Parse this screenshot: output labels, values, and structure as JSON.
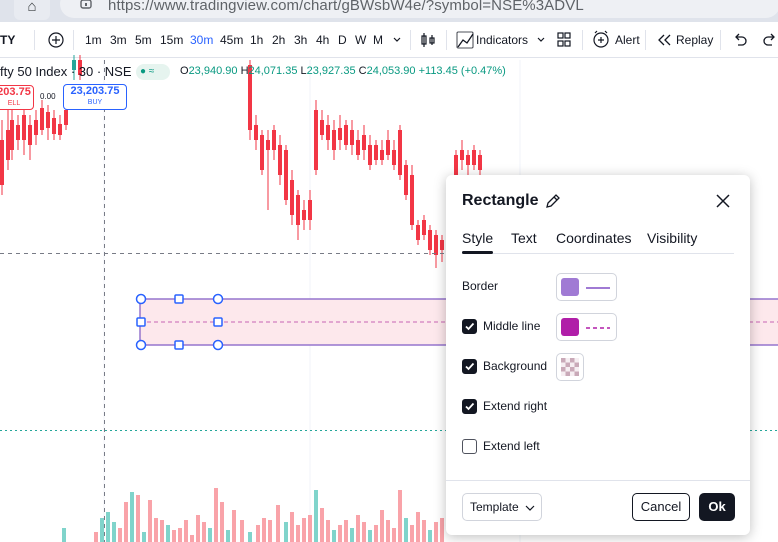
{
  "browser": {
    "url_domain": "https://www.tradingview.com",
    "url_path": "/chart/gBWsbW4e/?symbol=NSE%3ADVL"
  },
  "toolbar": {
    "symbol_partial": "TY",
    "timeframes": [
      "1m",
      "3m",
      "5m",
      "15m",
      "30m",
      "45m",
      "1h",
      "2h",
      "3h",
      "4h",
      "D",
      "W",
      "M"
    ],
    "active_timeframe": "30m",
    "indicators_label": "Indicators",
    "alert_label": "Alert",
    "replay_label": "Replay"
  },
  "legend": {
    "symbol": "fty 50 Index · 30 · NSE",
    "pill": "≈",
    "open_label": "O",
    "open": "23,940.90",
    "high_label": "H",
    "high": "24,071.35",
    "low_label": "L",
    "low": "23,927.35",
    "close_label": "C",
    "close": "24,053.90",
    "change": "+113.45 (+0.47%)"
  },
  "trade": {
    "sell_price": "203.75",
    "sell_label": "ELL",
    "spread": "0.00",
    "buy_price": "23,203.75",
    "buy_label": "BUY"
  },
  "dialog": {
    "title": "Rectangle",
    "tabs": [
      "Style",
      "Text",
      "Coordinates",
      "Visibility"
    ],
    "active_tab": "Style",
    "border_label": "Border",
    "border_color": "#a07ad4",
    "middle_line_label": "Middle line",
    "middle_line_checked": true,
    "middle_line_color": "#b01ea8",
    "background_label": "Background",
    "background_checked": true,
    "extend_right_label": "Extend right",
    "extend_right_checked": true,
    "extend_left_label": "Extend left",
    "extend_left_checked": false,
    "template_label": "Template",
    "cancel_label": "Cancel",
    "ok_label": "Ok"
  },
  "colors": {
    "up": "#26a69a",
    "down": "#f23645",
    "accent": "#2962ff",
    "rect_border": "#9575cd",
    "rect_fill": "#fde8ec"
  }
}
